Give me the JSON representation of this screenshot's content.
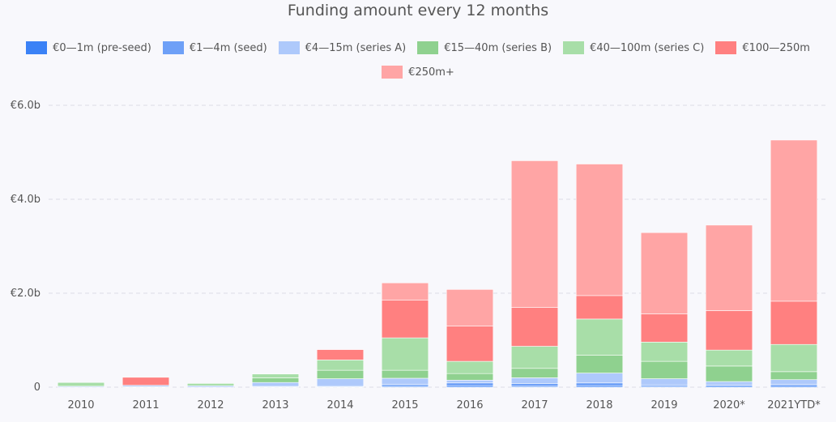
{
  "chart_data": {
    "type": "bar",
    "stacked": true,
    "title": "Funding amount every 12 months",
    "xlabel": "",
    "ylabel": "",
    "categories": [
      "2010",
      "2011",
      "2012",
      "2013",
      "2014",
      "2015",
      "2016",
      "2017",
      "2018",
      "2019",
      "2020*",
      "2021YTD*"
    ],
    "ylim": [
      0,
      6.0
    ],
    "yticks": [
      0,
      2.0,
      4.0,
      6.0
    ],
    "ytick_labels": [
      "0",
      "€2.0b",
      "€4.0b",
      "€6.0b"
    ],
    "grid": true,
    "legend_position": "top",
    "series": [
      {
        "name": "€0—1m (pre-seed)",
        "color": "#3b82f6",
        "values": [
          0.0,
          0.0,
          0.0,
          0.01,
          0.01,
          0.02,
          0.03,
          0.02,
          0.03,
          0.02,
          0.03,
          0.03
        ]
      },
      {
        "name": "€1—4m (seed)",
        "color": "#6ea0f7",
        "values": [
          0.0,
          0.01,
          0.0,
          0.02,
          0.02,
          0.04,
          0.06,
          0.06,
          0.06,
          0.03,
          0.02,
          0.03
        ]
      },
      {
        "name": "€4—15m (series A)",
        "color": "#aec9fb",
        "values": [
          0.02,
          0.03,
          0.03,
          0.07,
          0.15,
          0.13,
          0.06,
          0.12,
          0.21,
          0.13,
          0.07,
          0.1
        ]
      },
      {
        "name": "€15—40m (series B)",
        "color": "#8fd18f",
        "values": [
          0.0,
          0.0,
          0.0,
          0.1,
          0.18,
          0.17,
          0.14,
          0.2,
          0.38,
          0.37,
          0.33,
          0.17
        ]
      },
      {
        "name": "€40—100m (series C)",
        "color": "#a8dea8",
        "values": [
          0.08,
          0.0,
          0.05,
          0.08,
          0.22,
          0.69,
          0.26,
          0.47,
          0.77,
          0.41,
          0.34,
          0.58
        ]
      },
      {
        "name": "€100—250m",
        "color": "#ff8080",
        "values": [
          0.0,
          0.17,
          0.0,
          0.0,
          0.22,
          0.8,
          0.75,
          0.83,
          0.5,
          0.6,
          0.84,
          0.92
        ]
      },
      {
        "name": "€250m+",
        "color": "#ffa5a5",
        "values": [
          0.0,
          0.0,
          0.0,
          0.0,
          0.0,
          0.37,
          0.78,
          3.12,
          2.8,
          1.73,
          1.82,
          3.43
        ]
      }
    ]
  }
}
